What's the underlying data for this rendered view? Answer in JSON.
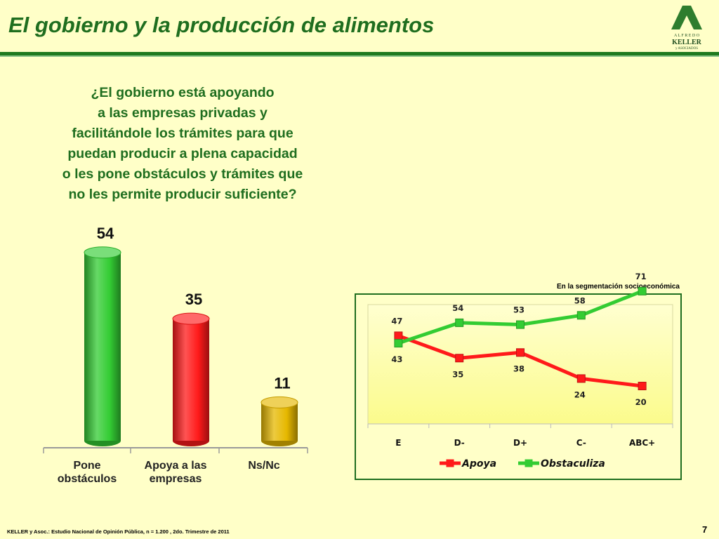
{
  "slide": {
    "title": "El gobierno y la producción de alimentos",
    "question": "¿El gobierno está apoyando\na las empresas privadas y\nfacilitándole los trámites para que\npuedan producir a plena capacidad\no les pone obstáculos y trámites que\nno les permite producir suficiente?",
    "logo": {
      "line1": "A L F R E D O",
      "line2": "KELLER",
      "line3": "y ASOCIADOS"
    },
    "footer": "KELLER y Asoc.: Estudio Nacional de Opinión Pública, n = 1.200 , 2do. Trimestre de 2011",
    "page_number": "7",
    "segment_caption": "En la segmentación socioeconómica"
  },
  "colors": {
    "title_green": "#1f6e1f",
    "background": "#ffffc8",
    "apoya": "#ff1a1a",
    "obstaculiza": "#33cc33",
    "nsnc": "#e6b800"
  },
  "chart_data": [
    {
      "type": "bar",
      "categories": [
        "Pone\nobstáculos",
        "Apoya a las\nempresas",
        "Ns/Nc"
      ],
      "values": [
        54,
        35,
        11
      ],
      "colors": [
        "#33cc33",
        "#ff1a1a",
        "#e6b800"
      ],
      "ylim": [
        0,
        60
      ]
    },
    {
      "type": "line",
      "x": [
        "E",
        "D-",
        "D+",
        "C-",
        "ABC+"
      ],
      "series": [
        {
          "name": "Apoya",
          "values": [
            47,
            35,
            38,
            24,
            20
          ],
          "color": "#ff1a1a"
        },
        {
          "name": "Obstaculiza",
          "values": [
            43,
            54,
            53,
            58,
            71
          ],
          "color": "#33cc33"
        }
      ],
      "ylim": [
        0,
        80
      ],
      "legend": "bottom"
    }
  ]
}
